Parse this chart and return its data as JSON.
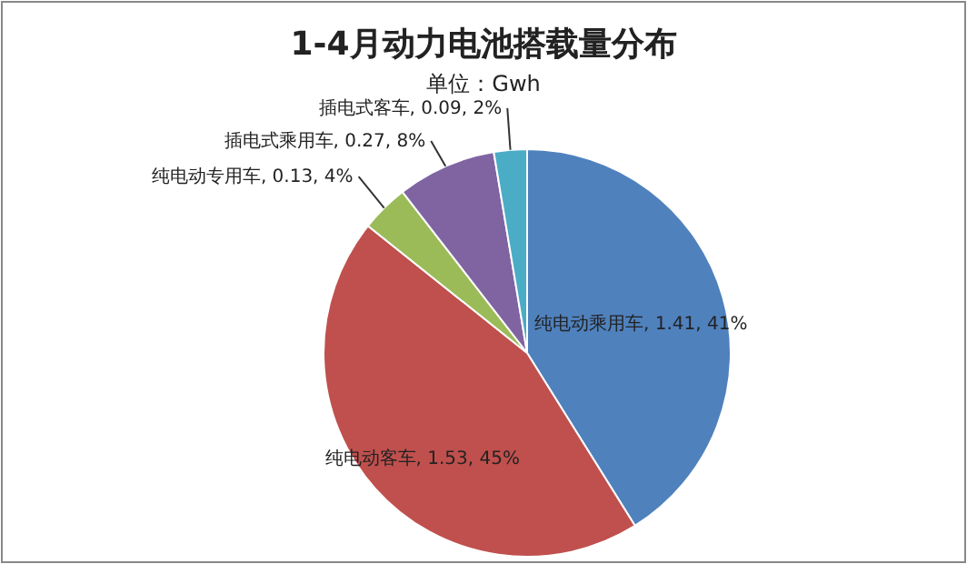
{
  "chart_data": {
    "type": "pie",
    "title": "1-4月动力电池搭载量分布",
    "subtitle": "单位：Gwh",
    "categories": [
      "纯电动乘用车",
      "纯电动客车",
      "纯电动专用车",
      "插电式乘用车",
      "插电式客车"
    ],
    "values": [
      1.41,
      1.53,
      0.13,
      0.27,
      0.09
    ],
    "value_labels": [
      "1.41, 41%",
      "1.53, 45%",
      "0.13, 4%",
      "0.27, 8%",
      "0.09, 2%"
    ],
    "colors": [
      "#4f81bd",
      "#c0504d",
      "#9bbb59",
      "#8064a2",
      "#4bacc6"
    ],
    "legend": false
  }
}
